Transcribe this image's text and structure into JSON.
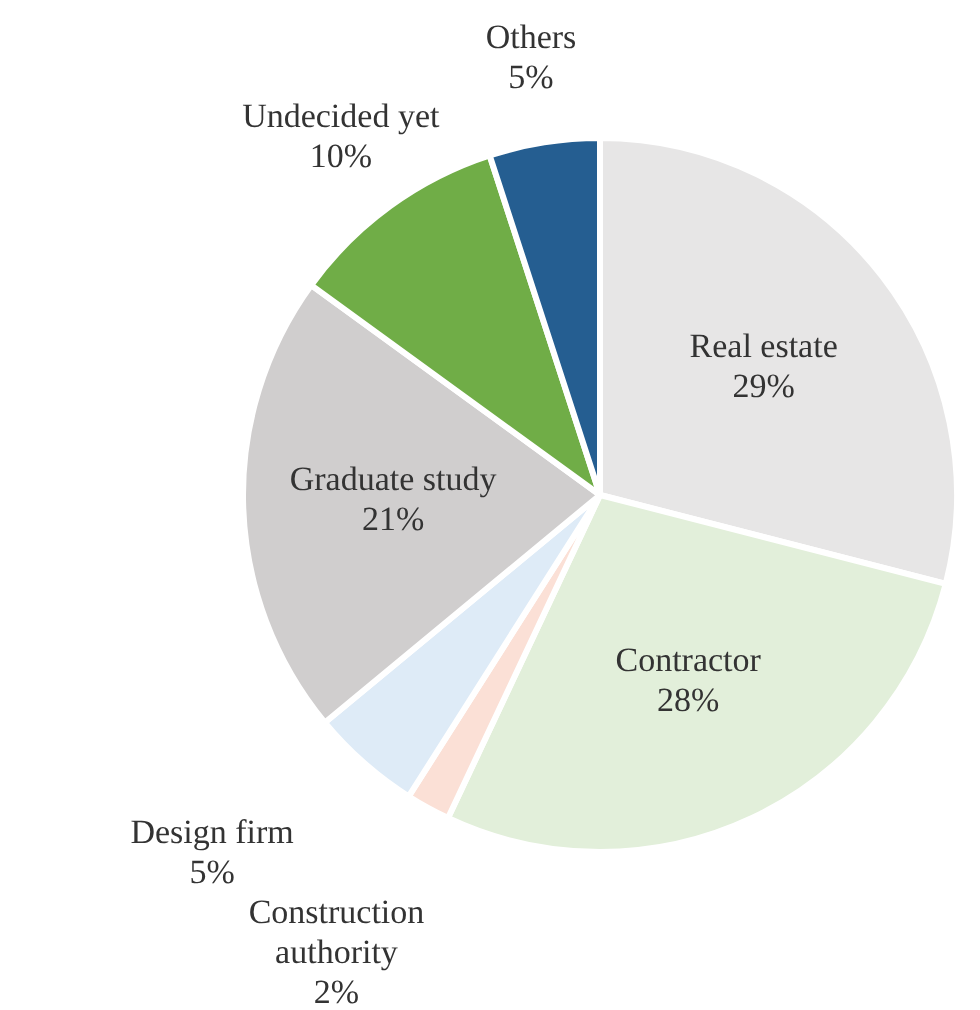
{
  "chart_data": {
    "type": "pie",
    "categories": [
      "Real estate",
      "Contractor",
      "Construction authority",
      "Design firm",
      "Graduate study",
      "Undecided yet",
      "Others"
    ],
    "values": [
      29,
      28,
      2,
      5,
      21,
      10,
      5
    ],
    "value_labels": [
      "29%",
      "28%",
      "2%",
      "5%",
      "21%",
      "10%",
      "5%"
    ],
    "colors": [
      "#e7e6e6",
      "#e2efda",
      "#fbe0d6",
      "#deebf7",
      "#d0cece",
      "#70ad47",
      "#255e91"
    ],
    "legend": false
  }
}
